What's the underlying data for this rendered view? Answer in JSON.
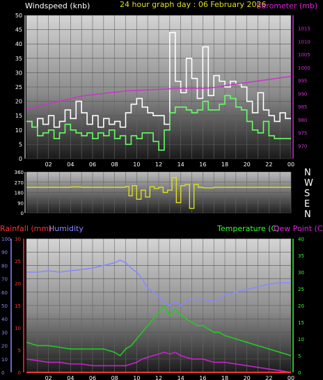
{
  "header": {
    "title_left": "Windspeed (knb)",
    "title_center": "24 hour graph day : 06 February 2026",
    "title_right": "Barometer (mb)"
  },
  "compass_labels": [
    "N",
    "W",
    "S",
    "E",
    "N"
  ],
  "panel_labels": {
    "rainfall": "Rainfall (mm)",
    "humidity": "Humidity",
    "temperature": "Temperature (C)",
    "dewpoint": "Dew Point (C)"
  },
  "colors": {
    "windspeed": "#ffffff",
    "gust": "#66ff66",
    "barometer": "#cc33cc",
    "direction": "#dddd22",
    "temperature": "#22cc22",
    "dewpoint": "#cc22cc",
    "humidity": "#8888ff",
    "rainfall": "#ff3333",
    "header_yellow": "#e0e020",
    "header_magenta": "#dd22dd",
    "axis_right_temp": "#33ff33"
  },
  "x_ticks": [
    "02",
    "04",
    "06",
    "08",
    "10",
    "12",
    "14",
    "16",
    "18",
    "20",
    "22",
    "00"
  ],
  "chart_data": [
    {
      "type": "line",
      "title": "24 hour graph day : 06 February 2026",
      "xlabel": "",
      "ylabel": "Windspeed (knb)",
      "y2label": "Barometer (mb)",
      "ylim": [
        0,
        50
      ],
      "y2lim": [
        965,
        1020
      ],
      "yticks": [
        0,
        5,
        10,
        15,
        20,
        25,
        30,
        35,
        40,
        45,
        50
      ],
      "y2ticks": [
        970,
        975,
        980,
        985,
        990,
        995,
        1000,
        1005,
        1010,
        1015
      ],
      "x": [
        0,
        0.5,
        1,
        1.5,
        2,
        2.5,
        3,
        3.5,
        4,
        4.5,
        5,
        5.5,
        6,
        6.5,
        7,
        7.5,
        8,
        8.5,
        9,
        9.5,
        10,
        10.5,
        11,
        11.5,
        12,
        12.5,
        13,
        13.5,
        14,
        14.5,
        15,
        15.5,
        16,
        16.5,
        17,
        17.5,
        18,
        18.5,
        19,
        19.5,
        20,
        20.5,
        21,
        21.5,
        22,
        22.5,
        23,
        23.5,
        24
      ],
      "series": [
        {
          "name": "Windspeed",
          "axis": "left",
          "values": [
            13,
            11,
            14,
            12,
            15,
            11,
            13,
            17,
            14,
            20,
            16,
            12,
            15,
            11,
            14,
            12,
            13,
            11,
            16,
            19,
            21,
            18,
            16,
            15,
            15,
            12,
            44,
            27,
            23,
            35,
            28,
            21,
            39,
            22,
            29,
            27,
            25,
            27,
            26,
            25,
            20,
            16,
            23,
            17,
            15,
            13,
            16,
            14,
            14
          ]
        },
        {
          "name": "Gust",
          "axis": "left",
          "values": [
            13,
            11,
            8,
            9,
            10,
            7,
            9,
            12,
            10,
            9,
            8,
            9,
            7,
            9,
            8,
            10,
            7,
            8,
            5,
            8,
            7,
            9,
            9,
            6,
            3,
            10,
            16,
            18,
            18,
            17,
            16,
            17,
            20,
            17,
            17,
            19,
            22,
            21,
            18,
            17,
            13,
            10,
            9,
            13,
            8,
            7,
            7,
            7,
            7
          ]
        },
        {
          "name": "Barometer",
          "axis": "right",
          "values": [
            984,
            984.5,
            985,
            985.5,
            986,
            986.5,
            987,
            987.5,
            988,
            988.5,
            989,
            989.3,
            989.5,
            989.8,
            990,
            990.3,
            990.5,
            990.7,
            991,
            991.1,
            991.2,
            991.3,
            991.4,
            991.5,
            991.6,
            991.7,
            991.8,
            991.9,
            992,
            992,
            992,
            992,
            992,
            992.1,
            992.3,
            992.6,
            993,
            993.3,
            993.6,
            993.9,
            994.2,
            994.5,
            994.8,
            995.1,
            995.4,
            995.7,
            996,
            996.3,
            996.5
          ]
        }
      ]
    },
    {
      "type": "line",
      "title": "",
      "ylabel": "",
      "ylim": [
        0,
        360
      ],
      "yticks": [
        0,
        90,
        180,
        270,
        360
      ],
      "x": [
        0,
        1,
        2,
        3,
        4,
        5,
        6,
        7,
        8,
        8.5,
        9,
        9.3,
        9.6,
        10,
        10.4,
        10.8,
        11.2,
        11.6,
        12,
        12.4,
        12.8,
        13.2,
        13.6,
        14,
        14.4,
        14.8,
        15.2,
        15.6,
        16,
        17,
        18,
        19,
        20,
        21,
        22,
        23,
        24
      ],
      "series": [
        {
          "name": "Wind direction",
          "values": [
            225,
            225,
            225,
            225,
            228,
            225,
            225,
            225,
            225,
            225,
            232,
            150,
            240,
            120,
            200,
            140,
            230,
            215,
            225,
            180,
            200,
            310,
            90,
            240,
            250,
            40,
            250,
            225,
            220,
            225,
            225,
            225,
            225,
            225,
            225,
            225,
            225
          ]
        }
      ]
    },
    {
      "type": "line",
      "title": "",
      "ylabel": "Humidity",
      "y2label": "Temperature (C)",
      "y3label": "Rainfall (mm)",
      "ylim": [
        0,
        100
      ],
      "yticks": [
        0,
        10,
        20,
        30,
        40,
        50,
        60,
        70,
        80,
        90,
        100
      ],
      "rainlim": [
        0,
        30
      ],
      "rainticks": [
        0,
        5,
        10,
        15,
        20,
        25,
        30
      ],
      "y2lim": [
        0,
        40
      ],
      "y2ticks": [
        0,
        5,
        10,
        15,
        20,
        25,
        30,
        35,
        40
      ],
      "x": [
        0,
        1,
        2,
        3,
        4,
        5,
        6,
        7,
        8,
        8.5,
        9,
        9.5,
        10,
        10.5,
        11,
        11.5,
        12,
        12.5,
        13,
        13.5,
        14,
        14.5,
        15,
        15.5,
        16,
        16.5,
        17,
        17.5,
        18,
        19,
        20,
        21,
        22,
        23,
        24
      ],
      "series": [
        {
          "name": "Humidity",
          "axis": "left",
          "values": [
            75,
            75,
            76,
            75,
            76,
            77,
            78,
            80,
            82,
            84,
            82,
            78,
            75,
            70,
            63,
            60,
            57,
            52,
            50,
            53,
            50,
            53,
            55,
            54,
            55,
            54,
            53,
            55,
            58,
            60,
            62,
            64,
            66,
            67,
            67
          ]
        },
        {
          "name": "Temperature",
          "axis": "right",
          "values": [
            9,
            8,
            8,
            7.5,
            7,
            7,
            7,
            7,
            6,
            5,
            7,
            8,
            10,
            12,
            14,
            16,
            18,
            20,
            17,
            19,
            17,
            16,
            15,
            14,
            14,
            13,
            12,
            12,
            11,
            10,
            9,
            8,
            7,
            6,
            5
          ]
        },
        {
          "name": "Dew point",
          "axis": "right",
          "values": [
            4,
            3.5,
            3,
            3,
            2.5,
            2.5,
            2,
            2,
            2,
            2,
            2,
            2.5,
            3,
            4,
            4.5,
            5,
            5.5,
            6,
            5.5,
            6,
            5,
            4.5,
            4,
            4,
            4,
            3.5,
            3,
            3,
            3,
            2.5,
            2,
            1.5,
            1,
            0.5,
            0
          ]
        },
        {
          "name": "Rainfall",
          "axis": "rain",
          "values": [
            0,
            0,
            0,
            0,
            0,
            0,
            0,
            0,
            0,
            0,
            0,
            0,
            0,
            0,
            0,
            0,
            0,
            0,
            0,
            0,
            0,
            0,
            0,
            0,
            0,
            0,
            0,
            0,
            0,
            0,
            0,
            0,
            0,
            0,
            0
          ]
        }
      ]
    }
  ]
}
